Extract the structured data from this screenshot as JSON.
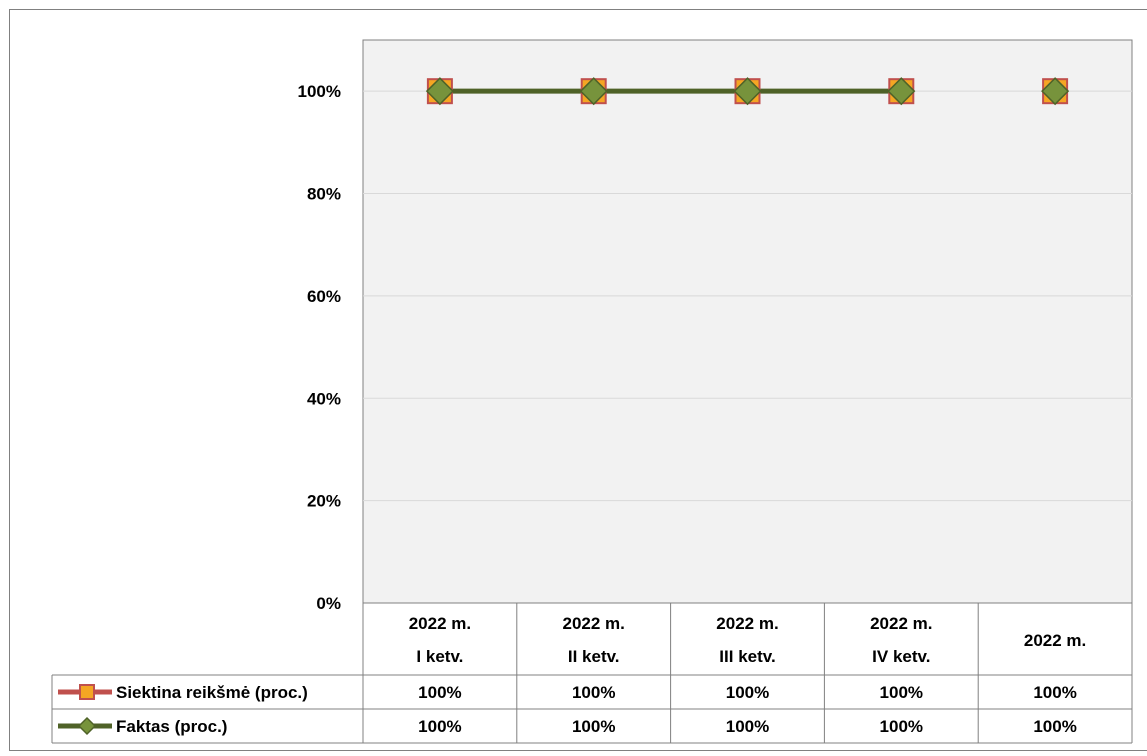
{
  "chart_data": {
    "type": "line",
    "categories": [
      [
        "2022 m.",
        "I ketv."
      ],
      [
        "2022 m.",
        "II ketv."
      ],
      [
        "2022 m.",
        "III ketv."
      ],
      [
        "2022 m.",
        "IV ketv."
      ],
      [
        "2022 m."
      ]
    ],
    "y_ticks": [
      "0%",
      "20%",
      "40%",
      "60%",
      "80%",
      "100%"
    ],
    "ylim": [
      0,
      110
    ],
    "grid": true,
    "legend": "data-table",
    "series": [
      {
        "name": "Siektina reikšmė (proc.)",
        "values": [
          100,
          100,
          100,
          100,
          100
        ],
        "labels": [
          "100%",
          "100%",
          "100%",
          "100%",
          "100%"
        ],
        "line_color": "#C0504D",
        "marker": "square",
        "marker_fill": "#F5A623",
        "marker_stroke": "#C0504D"
      },
      {
        "name": "Faktas (proc.)",
        "values": [
          100,
          100,
          100,
          100,
          100
        ],
        "labels": [
          "100%",
          "100%",
          "100%",
          "100%",
          "100%"
        ],
        "line_color": "#4F6228",
        "marker": "diamond",
        "marker_fill": "#77933C",
        "marker_stroke": "#4F6228"
      }
    ],
    "colors": {
      "plot_background": "#F2F2F2",
      "gridline": "#D9D9D9",
      "border": "#808080"
    }
  }
}
